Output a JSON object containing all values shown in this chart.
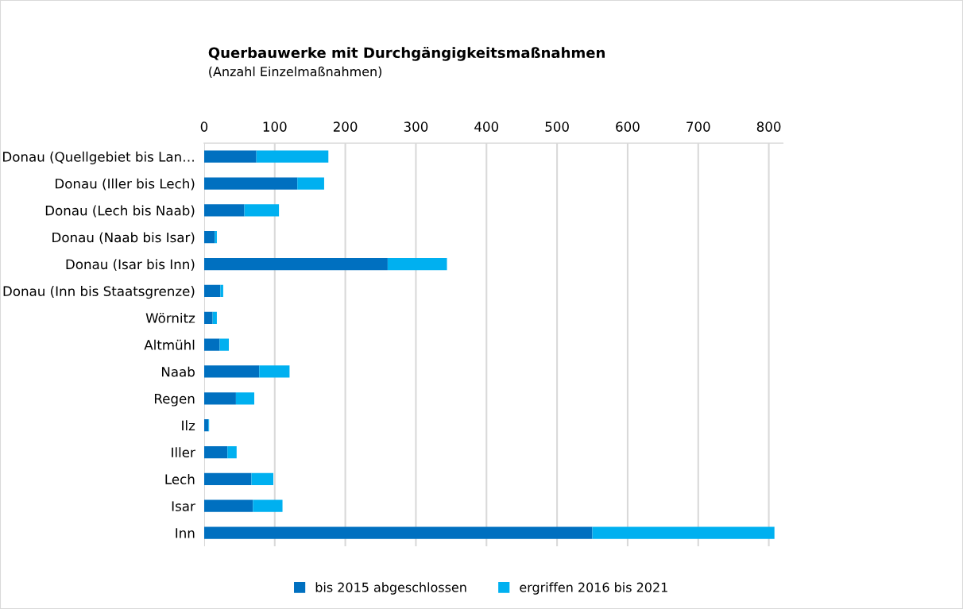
{
  "chart_data": {
    "type": "bar",
    "orientation": "horizontal",
    "stacked": true,
    "title": "Querbauwerke mit Durchgängigkeitsmaßnahmen",
    "subtitle": "(Anzahl Einzelmaßnahmen)",
    "categories": [
      "Donau (Quellgebiet bis Lan…",
      "Donau (Iller bis Lech)",
      "Donau (Lech bis Naab)",
      "Donau (Naab bis Isar)",
      "Donau (Isar bis Inn)",
      "Donau (Inn bis Staatsgrenze)",
      "Wörnitz",
      "Altmühl",
      "Naab",
      "Regen",
      "Ilz",
      "Iller",
      "Lech",
      "Isar",
      "Inn"
    ],
    "series": [
      {
        "name": "bis 2015 abgeschlossen",
        "color": "#0070c0",
        "values": [
          74,
          132,
          57,
          15,
          260,
          23,
          12,
          22,
          78,
          45,
          6,
          33,
          67,
          69,
          550
        ]
      },
      {
        "name": "ergriffen 2016 bis 2021",
        "color": "#00b0f0",
        "values": [
          102,
          38,
          49,
          3,
          84,
          4,
          6,
          13,
          43,
          26,
          1,
          13,
          31,
          42,
          258
        ]
      }
    ],
    "xlim": [
      0,
      820
    ],
    "xticks": [
      0,
      100,
      200,
      300,
      400,
      500,
      600,
      700,
      800
    ],
    "grid": "x",
    "legend": "bottom"
  }
}
